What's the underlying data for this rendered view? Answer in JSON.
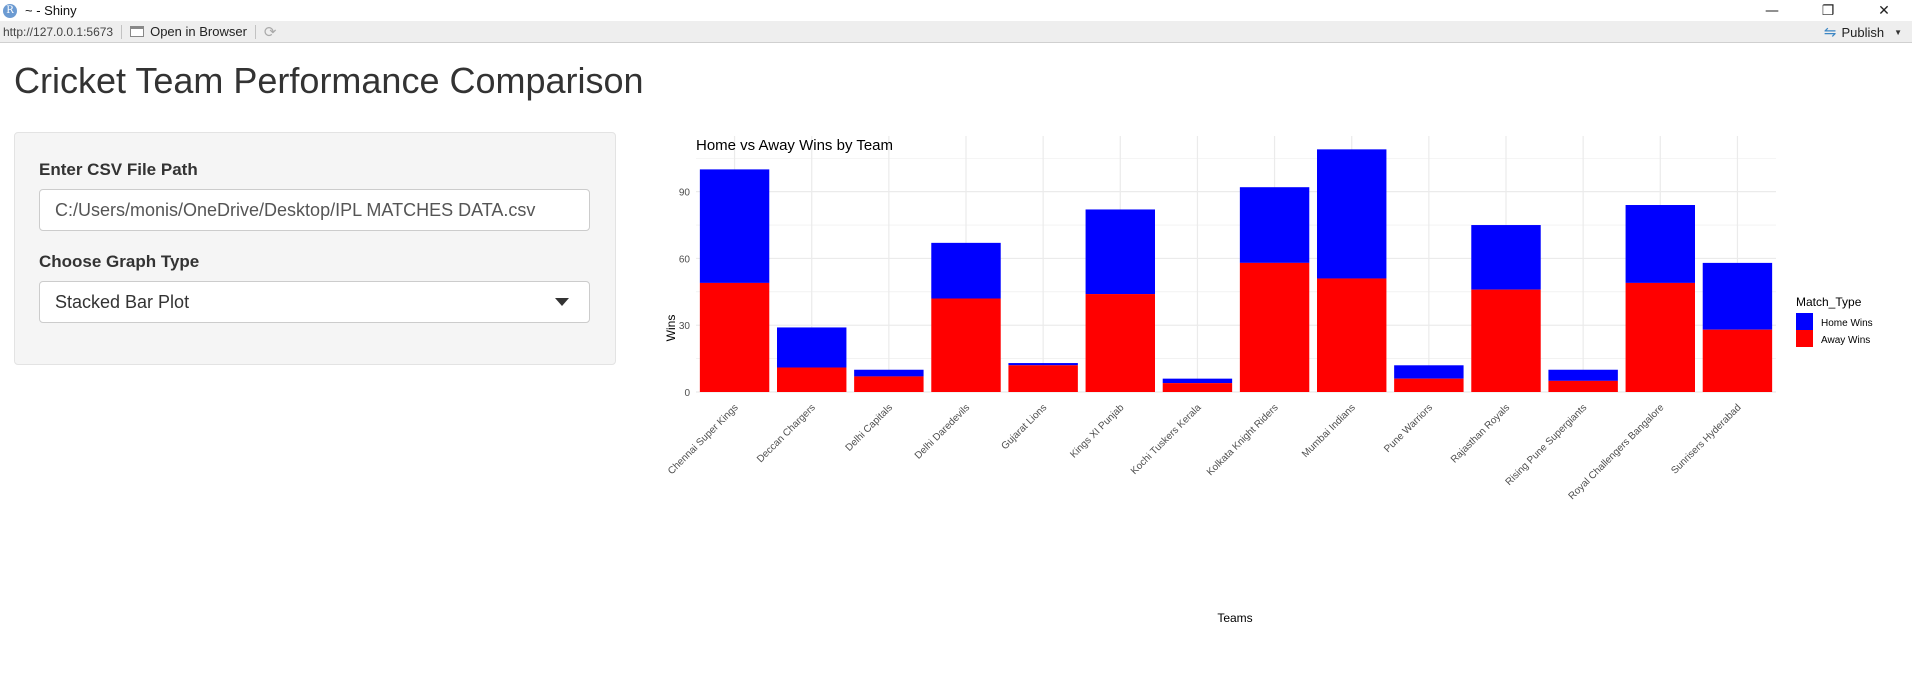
{
  "window": {
    "title": "~ - Shiny",
    "app_icon_letter": "R",
    "controls": [
      "—",
      "❐",
      "✕"
    ]
  },
  "addressbar": {
    "url": "http://127.0.0.1:5673",
    "open_in_browser": "Open in Browser",
    "publish": "Publish"
  },
  "page": {
    "title": "Cricket Team Performance Comparison"
  },
  "sidebar": {
    "csv_label": "Enter CSV File Path",
    "csv_value": "C:/Users/monis/OneDrive/Desktop/IPL MATCHES  DATA.csv",
    "graph_label": "Choose Graph Type",
    "graph_value": "Stacked Bar Plot"
  },
  "colors": {
    "home": "#0000ff",
    "away": "#ff0000",
    "grid": "#ebebeb"
  },
  "chart_data": {
    "type": "bar",
    "stacked": true,
    "title": "Home vs Away Wins by Team",
    "xlabel": "Teams",
    "ylabel": "Wins",
    "ylim": [
      0,
      115
    ],
    "yticks": [
      0,
      30,
      60,
      90
    ],
    "legend_title": "Match_Type",
    "legend_position": "right",
    "categories": [
      "Chennai Super Kings",
      "Deccan Chargers",
      "Delhi Capitals",
      "Delhi Daredevils",
      "Gujarat Lions",
      "Kings XI Punjab",
      "Kochi Tuskers Kerala",
      "Kolkata Knight Riders",
      "Mumbai Indians",
      "Pune Warriors",
      "Rajasthan Royals",
      "Rising Pune Supergiants",
      "Royal Challengers Bangalore",
      "Sunrisers Hyderabad"
    ],
    "series": [
      {
        "name": "Away Wins",
        "values": [
          49,
          11,
          7,
          42,
          12,
          44,
          4,
          58,
          51,
          6,
          46,
          5,
          49,
          28
        ]
      },
      {
        "name": "Home Wins",
        "values": [
          51,
          18,
          3,
          25,
          1,
          38,
          2,
          34,
          58,
          6,
          29,
          5,
          35,
          30
        ]
      }
    ],
    "legend_order": [
      "Home Wins",
      "Away Wins"
    ]
  }
}
